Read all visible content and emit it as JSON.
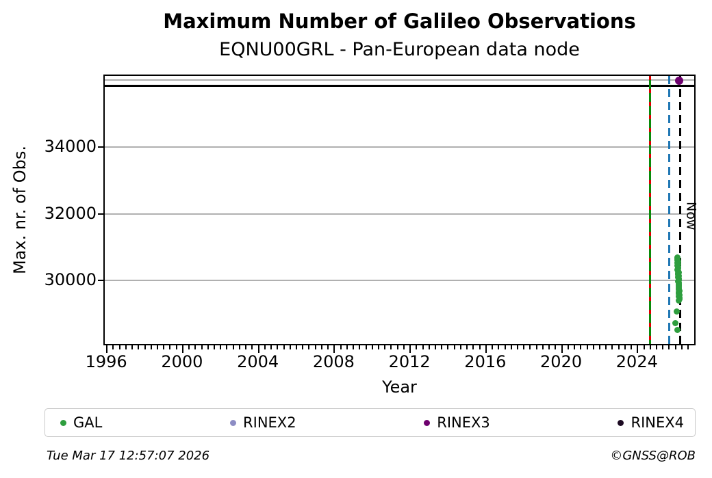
{
  "title": "Maximum Number of Galileo Observations",
  "subtitle": "EQNU00GRL - Pan-European data node",
  "footer": {
    "timestamp": "Tue Mar 17 12:57:07 2026",
    "credit": "©GNSS@ROB"
  },
  "legend": [
    {
      "label": "GAL",
      "color": "#2e9e3e"
    },
    {
      "label": "RINEX2",
      "color": "#8c8cc4"
    },
    {
      "label": "RINEX3",
      "color": "#6e006e"
    },
    {
      "label": "RINEX4",
      "color": "#1c0a22"
    }
  ],
  "chart_data": {
    "type": "scatter",
    "title": "Maximum Number of Galileo Observations",
    "subtitle": "EQNU00GRL - Pan-European data node",
    "xlabel": "Year",
    "ylabel": "Max. nr. of Obs.",
    "xlim": [
      1995.85,
      2026.95
    ],
    "ylim": [
      28100,
      36130
    ],
    "x_major_ticks": [
      1996,
      2000,
      2004,
      2008,
      2012,
      2016,
      2020,
      2024
    ],
    "x_minor_tick_interval": 0.33333,
    "y_ticks": [
      30000,
      32000,
      34000
    ],
    "y_gridlines": [
      30000,
      32000,
      34000,
      36000
    ],
    "grid_on": true,
    "grid_color": "#b0b0b0",
    "legend_position": "bottom",
    "series": [
      {
        "name": "GAL",
        "color": "#2e9e3e",
        "points": [
          [
            2026.05,
            30690
          ],
          [
            2026.08,
            30650
          ],
          [
            2026.06,
            30610
          ],
          [
            2026.09,
            30570
          ],
          [
            2026.07,
            30530
          ],
          [
            2026.1,
            30490
          ],
          [
            2026.06,
            30450
          ],
          [
            2026.09,
            30410
          ],
          [
            2026.11,
            30370
          ],
          [
            2026.08,
            30330
          ],
          [
            2026.1,
            30290
          ],
          [
            2026.12,
            30250
          ],
          [
            2026.09,
            30210
          ],
          [
            2026.11,
            30170
          ],
          [
            2026.13,
            30130
          ],
          [
            2026.1,
            30090
          ],
          [
            2026.12,
            30050
          ],
          [
            2026.14,
            30010
          ],
          [
            2026.11,
            29970
          ],
          [
            2026.13,
            29930
          ],
          [
            2026.12,
            29890
          ],
          [
            2026.14,
            29850
          ],
          [
            2026.15,
            29810
          ],
          [
            2026.12,
            29770
          ],
          [
            2026.14,
            29730
          ],
          [
            2026.16,
            29690
          ],
          [
            2026.13,
            29650
          ],
          [
            2026.15,
            29610
          ],
          [
            2026.16,
            29570
          ],
          [
            2026.14,
            29530
          ],
          [
            2026.16,
            29490
          ],
          [
            2026.17,
            29450
          ],
          [
            2026.15,
            29410
          ],
          [
            2026.03,
            29080
          ],
          [
            2025.95,
            28715
          ],
          [
            2026.05,
            28510
          ]
        ]
      },
      {
        "name": "RINEX2",
        "color": "#8c8cc4",
        "points": []
      },
      {
        "name": "RINEX3",
        "color": "#6e006e",
        "points": [
          [
            2026.17,
            35980
          ]
        ]
      },
      {
        "name": "RINEX4",
        "color": "#1c0a22",
        "points": []
      }
    ],
    "h_line": {
      "value": 35840,
      "color": "#000000"
    },
    "v_lines": [
      {
        "year": 2024.62,
        "style": "green-red-dashed",
        "colors": [
          "#0a8a0a",
          "#dd0000"
        ]
      },
      {
        "year": 2025.63,
        "style": "dashed",
        "color": "#1f77b4"
      },
      {
        "year": 2026.21,
        "style": "dashed",
        "color": "#000000",
        "label": "Now"
      }
    ]
  }
}
